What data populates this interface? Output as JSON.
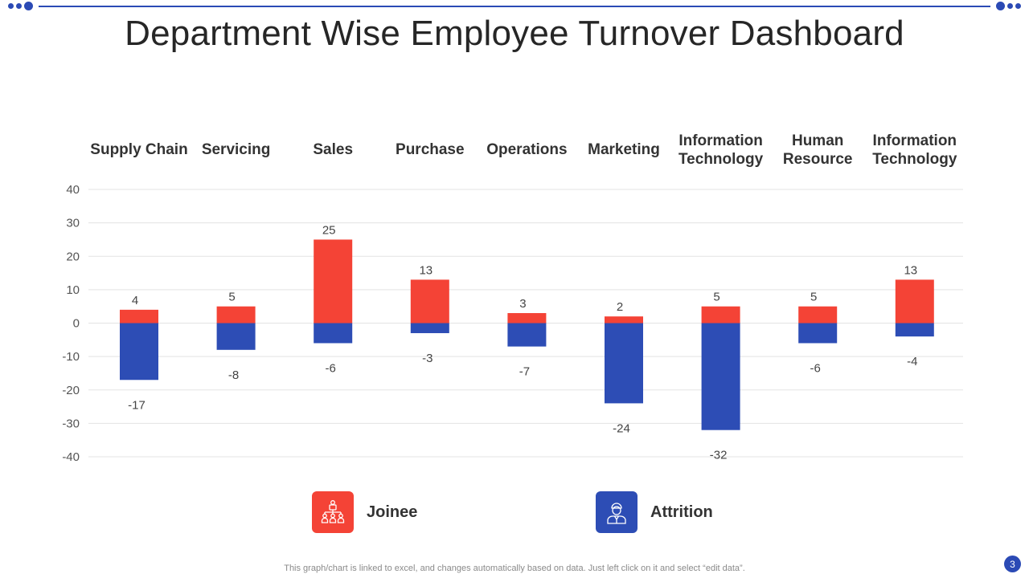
{
  "title": "Department Wise Employee Turnover Dashboard",
  "colors": {
    "accent": "#2B4AB5",
    "joinee": "#F44336",
    "attrition": "#2D4DB5"
  },
  "chart_data": {
    "type": "bar",
    "stacked": true,
    "categories": [
      [
        "Supply Chain"
      ],
      [
        "Servicing"
      ],
      [
        "Sales"
      ],
      [
        "Purchase"
      ],
      [
        "Operations"
      ],
      [
        "Marketing"
      ],
      [
        "Information",
        "Technology"
      ],
      [
        "Human",
        "Resource"
      ],
      [
        "Information",
        "Technology"
      ]
    ],
    "series": [
      {
        "name": "Joinee",
        "color": "#F44336",
        "values": [
          4,
          5,
          25,
          13,
          3,
          2,
          5,
          5,
          13
        ]
      },
      {
        "name": "Attrition",
        "color": "#2D4DB5",
        "values": [
          -17,
          -8,
          -6,
          -3,
          -7,
          -24,
          -32,
          -6,
          -4
        ]
      }
    ],
    "ylim": [
      -40,
      40
    ],
    "yticks": [
      40,
      30,
      20,
      10,
      0,
      -10,
      -20,
      -30,
      -40
    ],
    "grid": true,
    "legend_position": "bottom"
  },
  "legend": [
    {
      "label": "Joinee",
      "icon": "organization-chart-icon"
    },
    {
      "label": "Attrition",
      "icon": "employee-person-icon"
    }
  ],
  "footnote": "This graph/chart is linked to excel,  and changes automatically based on data. Just left click on it and select “edit data”.",
  "page_number": "3"
}
